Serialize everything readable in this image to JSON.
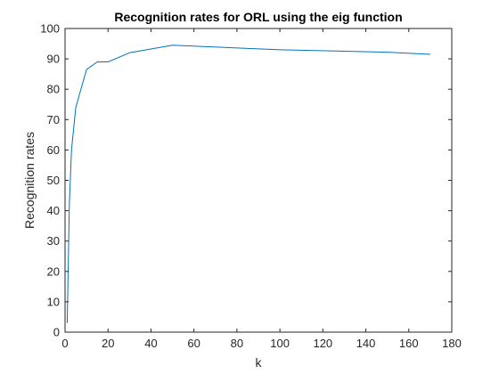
{
  "chart_data": {
    "type": "line",
    "title": "Recognition rates for ORL using the eig function",
    "xlabel": "k",
    "ylabel": "Recognition rates",
    "xlim": [
      0,
      180
    ],
    "ylim": [
      0,
      100
    ],
    "xticks": [
      0,
      20,
      40,
      60,
      80,
      100,
      120,
      140,
      160,
      180
    ],
    "yticks": [
      0,
      10,
      20,
      30,
      40,
      50,
      60,
      70,
      80,
      90,
      100
    ],
    "grid": false,
    "series": [
      {
        "color": "#0072BD",
        "x": [
          1,
          2,
          3,
          5,
          10,
          15,
          20,
          30,
          50,
          100,
          150,
          170
        ],
        "y": [
          3,
          42,
          60,
          74,
          86.5,
          89,
          89,
          92,
          94.5,
          93,
          92.2,
          91.5
        ]
      }
    ]
  }
}
